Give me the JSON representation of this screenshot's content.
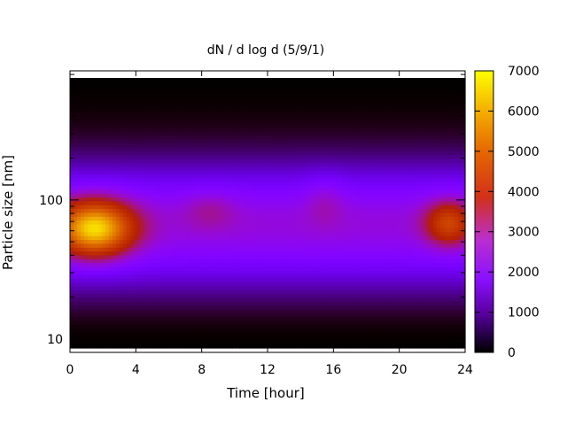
{
  "chart_data": {
    "type": "heatmap",
    "title": "dN / d log d (5/9/1)",
    "xlabel": "Time [hour]",
    "ylabel": "Particle size [nm]",
    "x_ticks": [
      0,
      4,
      8,
      12,
      16,
      20,
      24
    ],
    "x_tick_labels": [
      "0",
      "4",
      "8",
      "12",
      "16",
      "20",
      "24"
    ],
    "xlim": [
      0,
      24
    ],
    "y_scale": "log",
    "ylim": [
      8,
      850
    ],
    "y_ticks": [
      10,
      100
    ],
    "y_tick_labels": [
      "10",
      "100"
    ],
    "colorbar": {
      "range": [
        0,
        7000
      ],
      "ticks": [
        0,
        1000,
        2000,
        3000,
        4000,
        5000,
        6000,
        7000
      ],
      "tick_labels": [
        "0",
        "1000",
        "2000",
        "3000",
        "4000",
        "5000",
        "6000",
        "7000"
      ],
      "palette": [
        "#000000",
        "#5a00a0",
        "#8a10ff",
        "#bb2ed0",
        "#d2301a",
        "#e66a00",
        "#fdff00"
      ]
    },
    "features": [
      {
        "time_center": 1.5,
        "size_center_nm": 62,
        "peak_value": 6200
      },
      {
        "time_center": 8.5,
        "size_center_nm": 85,
        "peak_value": 3400
      },
      {
        "time_center": 15.5,
        "size_center_nm": 100,
        "peak_value": 2800
      },
      {
        "time_center": 23.0,
        "size_center_nm": 68,
        "peak_value": 4400
      }
    ]
  }
}
